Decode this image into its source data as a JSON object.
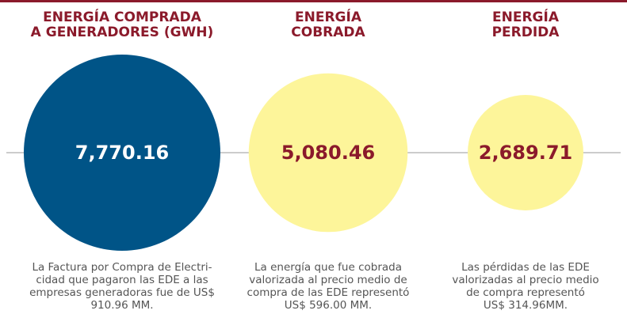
{
  "panels": [
    {
      "title_lines": [
        "ENERGÍA COMPRADA",
        "A GENERADORES (GWH)"
      ],
      "value": 7770.16,
      "value_label": "7,770.16",
      "circle_color": "#005487",
      "text_color": "#ffffff",
      "description_lines": [
        "La Factura por Compra de Electri-",
        "cidad que pagaron las EDE a las",
        "empresas generadoras fue de US$",
        "910.96 MM."
      ]
    },
    {
      "title_lines": [
        "ENERGÍA",
        "COBRADA"
      ],
      "value": 5080.46,
      "value_label": "5,080.46",
      "circle_color": "#fdf59a",
      "text_color": "#8b1a2b",
      "description_lines": [
        "La energía que fue cobrada",
        "valorizada al precio medio de",
        "compra de las EDE representó",
        "US$ 596.00 MM."
      ]
    },
    {
      "title_lines": [
        "ENERGÍA",
        "PERDIDA"
      ],
      "value": 2689.71,
      "value_label": "2,689.71",
      "circle_color": "#fdf59a",
      "text_color": "#8b1a2b",
      "description_lines": [
        "Las pérdidas de las EDE",
        "valorizadas al precio medio",
        "de compra representó",
        "US$ 314.96MM."
      ]
    }
  ]
}
